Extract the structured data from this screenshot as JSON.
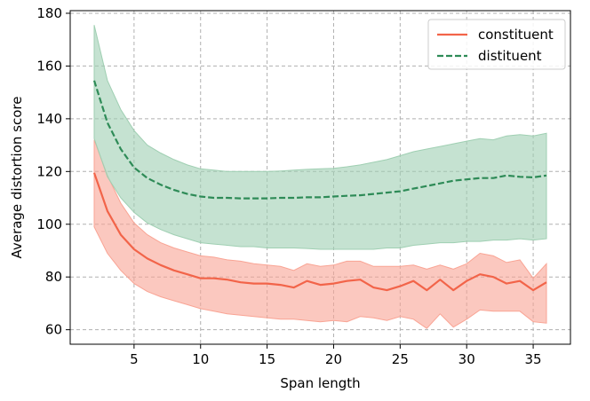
{
  "chart_data": {
    "type": "line",
    "title": "",
    "xlabel": "Span length",
    "ylabel": "Average distortion score",
    "xlim": [
      0.2,
      37.8
    ],
    "ylim": [
      54.5,
      181
    ],
    "xticks": [
      5,
      10,
      15,
      20,
      25,
      30,
      35
    ],
    "yticks": [
      60,
      80,
      100,
      120,
      140,
      160,
      180
    ],
    "grid": true,
    "legend_position": "top-right",
    "x": [
      2,
      3,
      4,
      5,
      6,
      7,
      8,
      9,
      10,
      11,
      12,
      13,
      14,
      15,
      16,
      17,
      18,
      19,
      20,
      21,
      22,
      23,
      24,
      25,
      26,
      27,
      28,
      29,
      30,
      31,
      32,
      33,
      34,
      35,
      36
    ],
    "series": [
      {
        "name": "constituent",
        "color": "#f26449",
        "band_color": "#f9a494",
        "line_style": "solid",
        "values": [
          119.5,
          105,
          96,
          90.5,
          87,
          84.5,
          82.5,
          81,
          79.5,
          79.5,
          79,
          78,
          77.5,
          77.5,
          77,
          76,
          78.5,
          77,
          77.5,
          78.5,
          79,
          76,
          75,
          76.5,
          78.5,
          75,
          79,
          75,
          78.5,
          81,
          80,
          77.5,
          78.5,
          75,
          78
        ],
        "upper": [
          132,
          118.5,
          108,
          100.5,
          96,
          93,
          91,
          89.5,
          88,
          87.5,
          86.5,
          86,
          85,
          84.5,
          84,
          82.5,
          85,
          84,
          84.5,
          86,
          86,
          84,
          84,
          84,
          84.5,
          83,
          84.5,
          83,
          85,
          89,
          88,
          85.5,
          86.5,
          79.5,
          85
        ],
        "lower": [
          99,
          89,
          82.5,
          77.5,
          74.5,
          72.5,
          71,
          69.5,
          68,
          67,
          66,
          65.5,
          65,
          64.5,
          64,
          64,
          63.5,
          63,
          63.5,
          63,
          65,
          64.5,
          63.5,
          65,
          64,
          60.5,
          66,
          61,
          64,
          67.5,
          67,
          67,
          67,
          63,
          62.5
        ]
      },
      {
        "name": "distituent",
        "color": "#2e8b57",
        "band_color": "#9fcfb2",
        "line_style": "dashed",
        "values": [
          154.5,
          138.5,
          128.5,
          121.5,
          117.5,
          115,
          113,
          111.5,
          110.5,
          110,
          110,
          109.8,
          109.8,
          109.8,
          110,
          110,
          110.2,
          110.2,
          110.5,
          110.8,
          111,
          111.5,
          112,
          112.5,
          113.5,
          114.5,
          115.5,
          116.5,
          117,
          117.5,
          117.5,
          118.5,
          118,
          117.8,
          118.5
        ],
        "upper": [
          175.5,
          154.5,
          143.5,
          135.5,
          130,
          127,
          124.5,
          122.5,
          121,
          120.5,
          120,
          120,
          120,
          120,
          120.2,
          120.5,
          120.8,
          121,
          121.2,
          121.8,
          122.5,
          123.5,
          124.5,
          126,
          127.5,
          128.5,
          129.5,
          130.5,
          131.5,
          132.5,
          132,
          133.5,
          134,
          133.5,
          134.5
        ],
        "lower": [
          132.5,
          118,
          110,
          104.5,
          100.5,
          98,
          96,
          94.5,
          93,
          92.5,
          92,
          91.5,
          91.5,
          91,
          91,
          91,
          90.8,
          90.5,
          90.5,
          90.5,
          90.5,
          90.5,
          91,
          91,
          92,
          92.5,
          93,
          93,
          93.5,
          93.5,
          94,
          94,
          94.5,
          94,
          94.5
        ]
      }
    ]
  }
}
